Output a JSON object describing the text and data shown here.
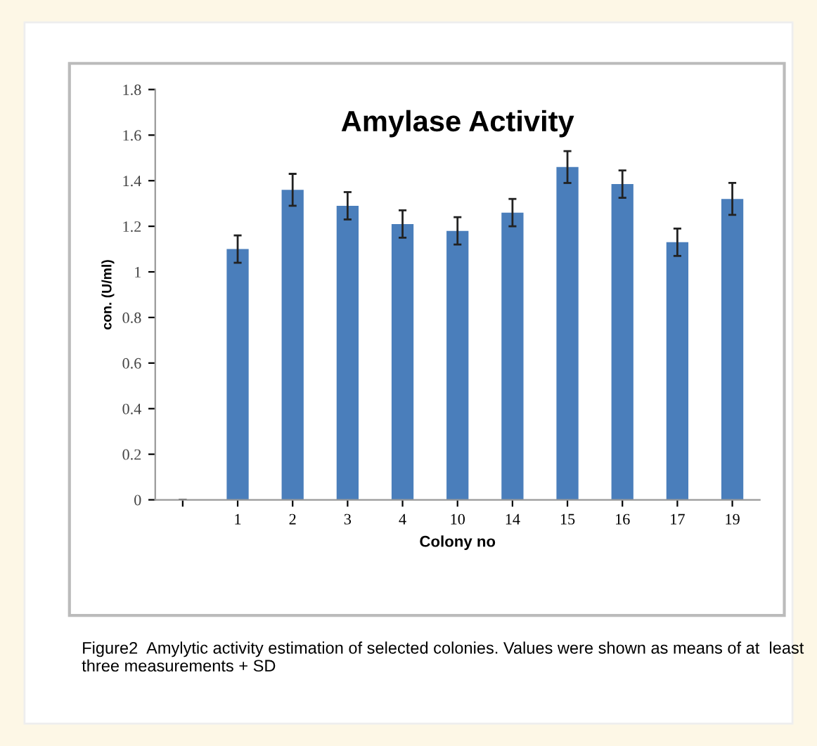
{
  "chart_data": {
    "type": "bar",
    "title": "Amylase Activity",
    "xlabel": "Colony no",
    "ylabel": "con. (U/ml)",
    "categories": [
      null,
      "1",
      "2",
      "3",
      "4",
      "10",
      "14",
      "15",
      "16",
      "17",
      "19"
    ],
    "values": [
      null,
      1.1,
      1.36,
      1.29,
      1.21,
      1.18,
      1.26,
      1.46,
      1.385,
      1.13,
      1.32
    ],
    "errors": [
      null,
      0.06,
      0.07,
      0.06,
      0.06,
      0.06,
      0.06,
      0.07,
      0.06,
      0.06,
      0.07
    ],
    "color": "#4a7ebb",
    "ylim": [
      0,
      1.8
    ],
    "yticks": [
      0,
      0.2,
      0.4,
      0.6,
      0.8,
      1,
      1.2,
      1.4,
      1.6,
      1.8
    ],
    "grid": false,
    "annotations": [
      "Figure2  Amylytic activity estimation of selected colonies. Values were shown as means of at  least three measurements + SD"
    ]
  }
}
